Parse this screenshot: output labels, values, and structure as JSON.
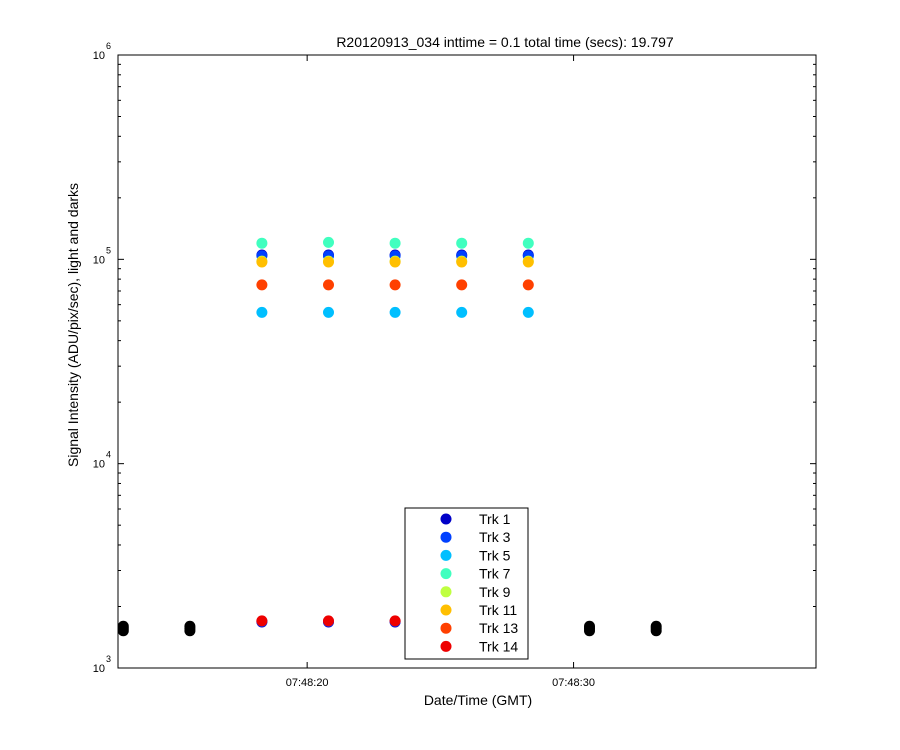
{
  "chart_data": {
    "type": "scatter",
    "title": "R20120913_034 inttime = 0.1 total time (secs): 19.797",
    "xlabel": "Date/Time (GMT)",
    "ylabel": "Signal Intensity (ADU/pix/sec), light and darks",
    "y_scale": "log",
    "ylim": [
      1000,
      1000000
    ],
    "xlim": [
      "07:48:12.9",
      "07:48:39.1"
    ],
    "x_ticks": [
      {
        "value": "07:48:20",
        "label": "07:48:20"
      },
      {
        "value": "07:48:30",
        "label": "07:48:30"
      }
    ],
    "y_ticks": [
      {
        "value": 1000,
        "base": "10",
        "exp": "3"
      },
      {
        "value": 10000,
        "base": "10",
        "exp": "4"
      },
      {
        "value": 100000,
        "base": "10",
        "exp": "5"
      },
      {
        "value": 1000000,
        "base": "10",
        "exp": "6"
      }
    ],
    "legend_placement": "bottom-center",
    "series": [
      {
        "name": "Trk 1",
        "color": "#0000c8",
        "points": [
          [
            "07:48:18.3",
            105000
          ],
          [
            "07:48:20.8",
            105000
          ],
          [
            "07:48:23.3",
            105000
          ],
          [
            "07:48:25.8",
            105000
          ],
          [
            "07:48:28.3",
            105000
          ],
          [
            "07:48:18.3",
            1680
          ],
          [
            "07:48:20.8",
            1680
          ],
          [
            "07:48:23.3",
            1680
          ]
        ]
      },
      {
        "name": "Trk 3",
        "color": "#0040ff",
        "points": [
          [
            "07:48:18.3",
            104000
          ],
          [
            "07:48:20.8",
            104000
          ],
          [
            "07:48:23.3",
            104000
          ],
          [
            "07:48:25.8",
            104000
          ],
          [
            "07:48:28.3",
            104000
          ],
          [
            "07:48:18.3",
            1690
          ],
          [
            "07:48:20.8",
            1690
          ],
          [
            "07:48:23.3",
            1690
          ]
        ]
      },
      {
        "name": "Trk 5",
        "color": "#00bfff",
        "points": [
          [
            "07:48:18.3",
            55000
          ],
          [
            "07:48:20.8",
            55000
          ],
          [
            "07:48:23.3",
            55000
          ],
          [
            "07:48:25.8",
            55000
          ],
          [
            "07:48:28.3",
            55000
          ]
        ]
      },
      {
        "name": "Trk 7",
        "color": "#40ffbf",
        "points": [
          [
            "07:48:18.3",
            120000
          ],
          [
            "07:48:20.8",
            121000
          ],
          [
            "07:48:23.3",
            120000
          ],
          [
            "07:48:25.8",
            120000
          ],
          [
            "07:48:28.3",
            120000
          ]
        ]
      },
      {
        "name": "Trk 9",
        "color": "#bfff40",
        "points": [
          [
            "07:48:18.3",
            98000
          ],
          [
            "07:48:20.8",
            98000
          ],
          [
            "07:48:23.3",
            98000
          ],
          [
            "07:48:25.8",
            98000
          ],
          [
            "07:48:28.3",
            98000
          ]
        ]
      },
      {
        "name": "Trk 11",
        "color": "#ffbf00",
        "points": [
          [
            "07:48:18.3",
            97000
          ],
          [
            "07:48:20.8",
            97000
          ],
          [
            "07:48:23.3",
            97000
          ],
          [
            "07:48:25.8",
            97000
          ],
          [
            "07:48:28.3",
            97000
          ]
        ]
      },
      {
        "name": "Trk 13",
        "color": "#ff4000",
        "points": [
          [
            "07:48:18.3",
            75000
          ],
          [
            "07:48:20.8",
            75000
          ],
          [
            "07:48:23.3",
            75000
          ],
          [
            "07:48:25.8",
            75000
          ],
          [
            "07:48:28.3",
            75000
          ]
        ]
      },
      {
        "name": "Trk 14",
        "color": "#ee0000",
        "points": [
          [
            "07:48:18.3",
            1700
          ],
          [
            "07:48:20.8",
            1700
          ],
          [
            "07:48:23.3",
            1700
          ]
        ]
      },
      {
        "color": "#000000",
        "points": [
          [
            "07:48:13.1",
            1520
          ],
          [
            "07:48:13.1",
            1560
          ],
          [
            "07:48:13.1",
            1600
          ],
          [
            "07:48:15.6",
            1520
          ],
          [
            "07:48:15.6",
            1560
          ],
          [
            "07:48:15.6",
            1600
          ],
          [
            "07:48:30.6",
            1520
          ],
          [
            "07:48:30.6",
            1560
          ],
          [
            "07:48:30.6",
            1600
          ],
          [
            "07:48:33.1",
            1520
          ],
          [
            "07:48:33.1",
            1560
          ],
          [
            "07:48:33.1",
            1600
          ]
        ]
      }
    ]
  }
}
